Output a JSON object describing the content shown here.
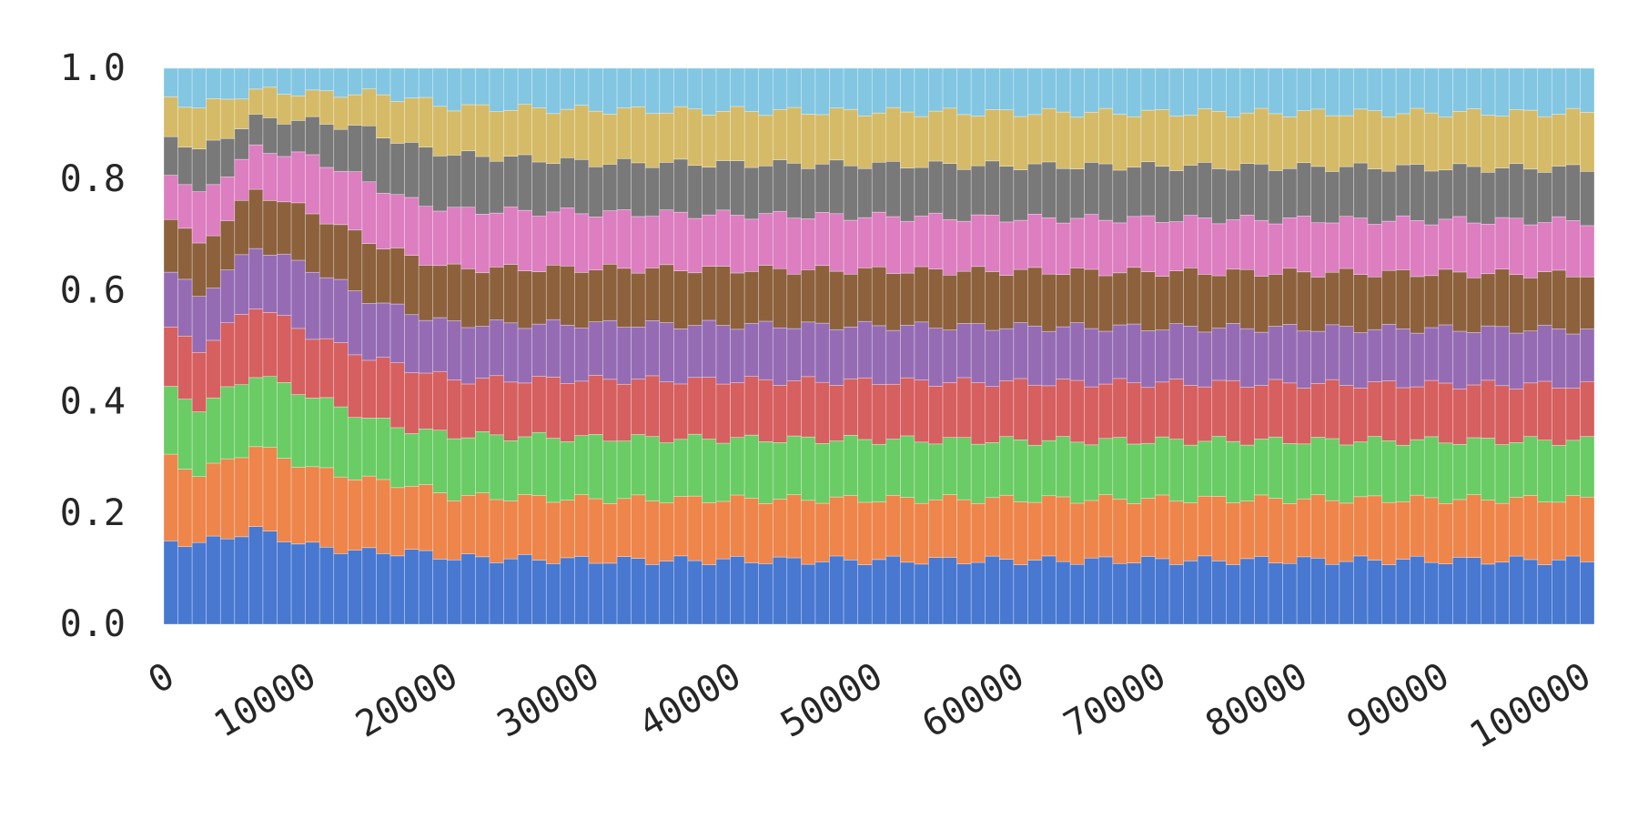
{
  "chart_data": {
    "type": "bar",
    "stacked": true,
    "xlabel": "",
    "ylabel": "",
    "xlim": [
      0,
      101000
    ],
    "ylim": [
      0,
      1.0
    ],
    "bin_width": 1000,
    "grid": false,
    "legend": "none",
    "x_ticks": [
      "0",
      "10000",
      "20000",
      "30000",
      "40000",
      "50000",
      "60000",
      "70000",
      "80000",
      "90000",
      "100000"
    ],
    "y_ticks": [
      "0.0",
      "0.2",
      "0.4",
      "0.6",
      "0.8",
      "1.0"
    ],
    "series_colors": [
      "#4878d0",
      "#ee854a",
      "#6acc64",
      "#d65f5f",
      "#956cb4",
      "#8c613c",
      "#dc7ec0",
      "#797979",
      "#d5bb67",
      "#82c6e2"
    ],
    "keyframes": [
      {
        "x": 0,
        "b": [
          0.15,
          0.3,
          0.42,
          0.53,
          0.635,
          0.735,
          0.815,
          0.88,
          0.945
        ]
      },
      {
        "x": 2000,
        "b": [
          0.145,
          0.27,
          0.39,
          0.495,
          0.59,
          0.68,
          0.77,
          0.85,
          0.93
        ]
      },
      {
        "x": 6000,
        "b": [
          0.17,
          0.32,
          0.45,
          0.575,
          0.68,
          0.78,
          0.855,
          0.91,
          0.96
        ]
      },
      {
        "x": 10000,
        "b": [
          0.14,
          0.28,
          0.41,
          0.52,
          0.64,
          0.74,
          0.84,
          0.905,
          0.955
        ]
      },
      {
        "x": 14000,
        "b": [
          0.13,
          0.26,
          0.37,
          0.48,
          0.585,
          0.69,
          0.795,
          0.89,
          0.955
        ]
      },
      {
        "x": 17000,
        "b": [
          0.13,
          0.25,
          0.35,
          0.46,
          0.56,
          0.66,
          0.76,
          0.86,
          0.945
        ]
      },
      {
        "x": 20000,
        "b": [
          0.12,
          0.23,
          0.34,
          0.44,
          0.54,
          0.64,
          0.745,
          0.845,
          0.93
        ]
      },
      {
        "x": 30000,
        "b": [
          0.115,
          0.225,
          0.335,
          0.44,
          0.54,
          0.64,
          0.74,
          0.83,
          0.925
        ]
      },
      {
        "x": 60000,
        "b": [
          0.115,
          0.225,
          0.33,
          0.435,
          0.535,
          0.635,
          0.73,
          0.825,
          0.92
        ]
      },
      {
        "x": 100000,
        "b": [
          0.115,
          0.225,
          0.33,
          0.43,
          0.53,
          0.63,
          0.725,
          0.82,
          0.92
        ]
      }
    ]
  }
}
